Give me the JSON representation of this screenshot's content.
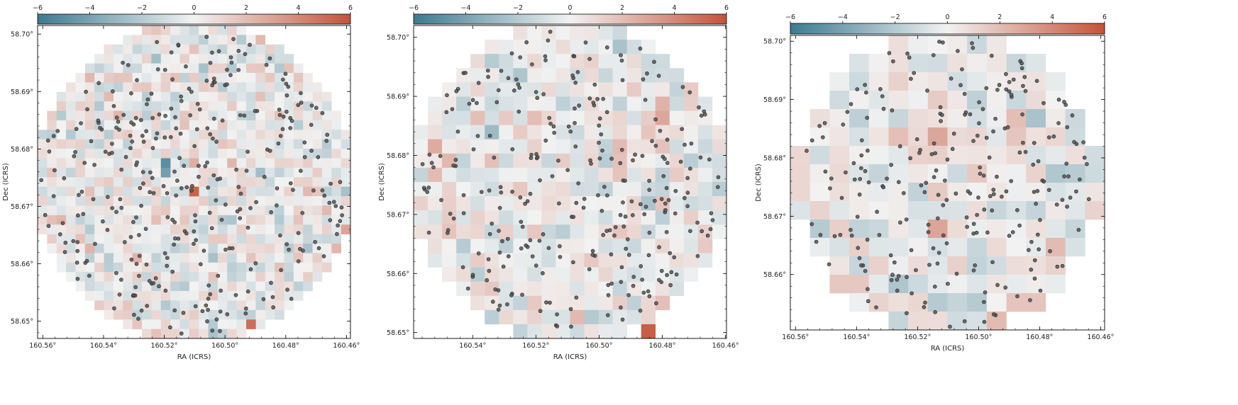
{
  "colorbar": {
    "ticks": [
      -6,
      -4,
      -2,
      0,
      2,
      4,
      6
    ],
    "colors": {
      "negative": "#3d7a91",
      "neutral": "#f2f2f2",
      "positive": "#c4533a"
    }
  },
  "points_style": {
    "fill": "#555555",
    "edge": "#222222"
  },
  "chart_data": [
    {
      "type": "heatmap",
      "panel": "left",
      "xlabel": "RA (ICRS)",
      "ylabel": "Dec (ICRS)",
      "xticks": [
        "160.56°",
        "160.54°",
        "160.52°",
        "160.50°",
        "160.48°",
        "160.46°"
      ],
      "yticks": [
        "58.65°",
        "58.66°",
        "58.67°",
        "58.68°",
        "58.69°",
        "58.70°"
      ],
      "xlim": [
        160.5617,
        160.4587
      ],
      "ylim": [
        58.647,
        58.7015
      ],
      "clim": [
        -6,
        6
      ],
      "grid_n": 33,
      "seed": 1,
      "n_points": 330,
      "highlights": [
        {
          "ra": 160.519,
          "dec": 58.6775,
          "value": -5.0
        },
        {
          "ra": 160.521,
          "dec": 58.6755,
          "value": -4.2
        },
        {
          "ra": 160.509,
          "dec": 58.6725,
          "value": 5.4
        },
        {
          "ra": 160.49,
          "dec": 58.6495,
          "value": 5.0
        }
      ]
    },
    {
      "type": "heatmap",
      "panel": "middle",
      "xlabel": "RA (ICRS)",
      "ylabel": "Dec (ICRS)",
      "xticks": [
        "160.54°",
        "160.52°",
        "160.50°",
        "160.48°",
        "160.46°"
      ],
      "yticks": [
        "58.65°",
        "58.66°",
        "58.67°",
        "58.68°",
        "58.69°",
        "58.70°"
      ],
      "xlim": [
        160.5587,
        160.4597
      ],
      "ylim": [
        58.649,
        58.702
      ],
      "clim": [
        -6,
        6
      ],
      "grid_n": 22,
      "seed": 2,
      "n_points": 290,
      "highlights": [
        {
          "ra": 160.483,
          "dec": 58.6495,
          "value": 5.6
        }
      ]
    },
    {
      "type": "heatmap",
      "panel": "right",
      "xlabel": "RA (ICRS)",
      "ylabel": "Dec (ICRS)",
      "xticks": [
        "160.56°",
        "160.54°",
        "160.52°",
        "160.50°",
        "160.48°",
        "160.46°"
      ],
      "yticks": [
        "58.66°",
        "58.67°",
        "58.68°",
        "58.69°",
        "58.70°"
      ],
      "xlim": [
        160.5617,
        160.4587
      ],
      "ylim": [
        58.6505,
        58.701
      ],
      "clim": [
        -6,
        6
      ],
      "grid_n": 16,
      "seed": 3,
      "n_points": 250,
      "highlights": []
    }
  ]
}
